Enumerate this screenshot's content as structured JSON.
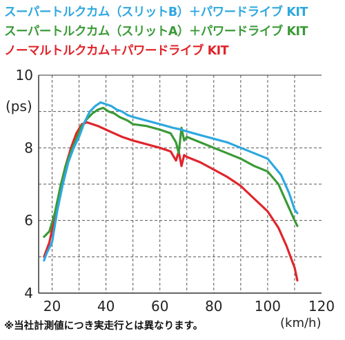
{
  "colors": {
    "blue": "#2ea8df",
    "green": "#3a9a37",
    "red": "#e0242b",
    "grid": "#555555",
    "axis": "#333333"
  },
  "chart_data": {
    "type": "line",
    "ylabel": "(ps)",
    "xunit": "(km/h)",
    "note": "※当社計測値につき実走行とは異なります。",
    "xlim": [
      15,
      120
    ],
    "ylim": [
      4,
      10
    ],
    "xticks": [
      "20",
      "40",
      "60",
      "80",
      "100",
      "120"
    ],
    "yticks": [
      "4",
      "6",
      "8",
      "10"
    ],
    "grid": "dashed",
    "series": [
      {
        "name": "スーパートルクカム（スリットB）＋パワードライブ KIT",
        "color": "#2ea8df",
        "points": [
          [
            17,
            4.9
          ],
          [
            18,
            5.1
          ],
          [
            20,
            5.4
          ],
          [
            22,
            6.3
          ],
          [
            24,
            7.0
          ],
          [
            26,
            7.6
          ],
          [
            28,
            8.0
          ],
          [
            30,
            8.3
          ],
          [
            32,
            8.7
          ],
          [
            34,
            9.0
          ],
          [
            36,
            9.15
          ],
          [
            38,
            9.25
          ],
          [
            40,
            9.2
          ],
          [
            42,
            9.15
          ],
          [
            44,
            9.05
          ],
          [
            46,
            9.0
          ],
          [
            48,
            8.9
          ],
          [
            50,
            8.85
          ],
          [
            55,
            8.75
          ],
          [
            60,
            8.65
          ],
          [
            65,
            8.55
          ],
          [
            68,
            8.5
          ],
          [
            70,
            8.45
          ],
          [
            75,
            8.35
          ],
          [
            80,
            8.25
          ],
          [
            85,
            8.15
          ],
          [
            90,
            8.0
          ],
          [
            95,
            7.85
          ],
          [
            100,
            7.7
          ],
          [
            105,
            7.25
          ],
          [
            108,
            6.75
          ],
          [
            110,
            6.3
          ],
          [
            111,
            6.2
          ]
        ]
      },
      {
        "name": "スーパートルクカム（スリットA）＋パワードライブ KIT",
        "color": "#3a9a37",
        "points": [
          [
            17,
            5.55
          ],
          [
            19,
            5.7
          ],
          [
            21,
            6.2
          ],
          [
            23,
            6.9
          ],
          [
            25,
            7.5
          ],
          [
            27,
            7.9
          ],
          [
            29,
            8.25
          ],
          [
            31,
            8.6
          ],
          [
            33,
            8.8
          ],
          [
            35,
            8.95
          ],
          [
            37,
            9.05
          ],
          [
            39,
            9.1
          ],
          [
            41,
            9.0
          ],
          [
            43,
            8.95
          ],
          [
            45,
            8.85
          ],
          [
            48,
            8.75
          ],
          [
            50,
            8.65
          ],
          [
            55,
            8.6
          ],
          [
            60,
            8.5
          ],
          [
            64,
            8.4
          ],
          [
            66,
            8.15
          ],
          [
            67,
            7.85
          ],
          [
            68,
            8.55
          ],
          [
            69,
            8.2
          ],
          [
            70,
            8.3
          ],
          [
            75,
            8.15
          ],
          [
            80,
            8.0
          ],
          [
            85,
            7.85
          ],
          [
            90,
            7.7
          ],
          [
            95,
            7.5
          ],
          [
            100,
            7.35
          ],
          [
            104,
            7.0
          ],
          [
            107,
            6.5
          ],
          [
            110,
            6.0
          ],
          [
            111,
            5.85
          ]
        ]
      },
      {
        "name": "ノーマルトルクカム＋パワードライブ KIT",
        "color": "#e0242b",
        "points": [
          [
            17,
            5.0
          ],
          [
            19,
            5.4
          ],
          [
            21,
            6.1
          ],
          [
            23,
            6.9
          ],
          [
            25,
            7.5
          ],
          [
            27,
            8.0
          ],
          [
            29,
            8.4
          ],
          [
            31,
            8.65
          ],
          [
            33,
            8.7
          ],
          [
            35,
            8.65
          ],
          [
            37,
            8.6
          ],
          [
            40,
            8.5
          ],
          [
            43,
            8.4
          ],
          [
            46,
            8.3
          ],
          [
            50,
            8.2
          ],
          [
            55,
            8.1
          ],
          [
            60,
            8.0
          ],
          [
            64,
            7.9
          ],
          [
            66,
            7.65
          ],
          [
            67,
            7.9
          ],
          [
            68,
            7.5
          ],
          [
            69,
            7.8
          ],
          [
            70,
            7.75
          ],
          [
            75,
            7.6
          ],
          [
            80,
            7.4
          ],
          [
            85,
            7.2
          ],
          [
            90,
            6.95
          ],
          [
            95,
            6.6
          ],
          [
            100,
            6.25
          ],
          [
            104,
            5.8
          ],
          [
            107,
            5.3
          ],
          [
            109,
            4.9
          ],
          [
            110,
            4.7
          ],
          [
            111,
            4.35
          ]
        ]
      }
    ]
  }
}
